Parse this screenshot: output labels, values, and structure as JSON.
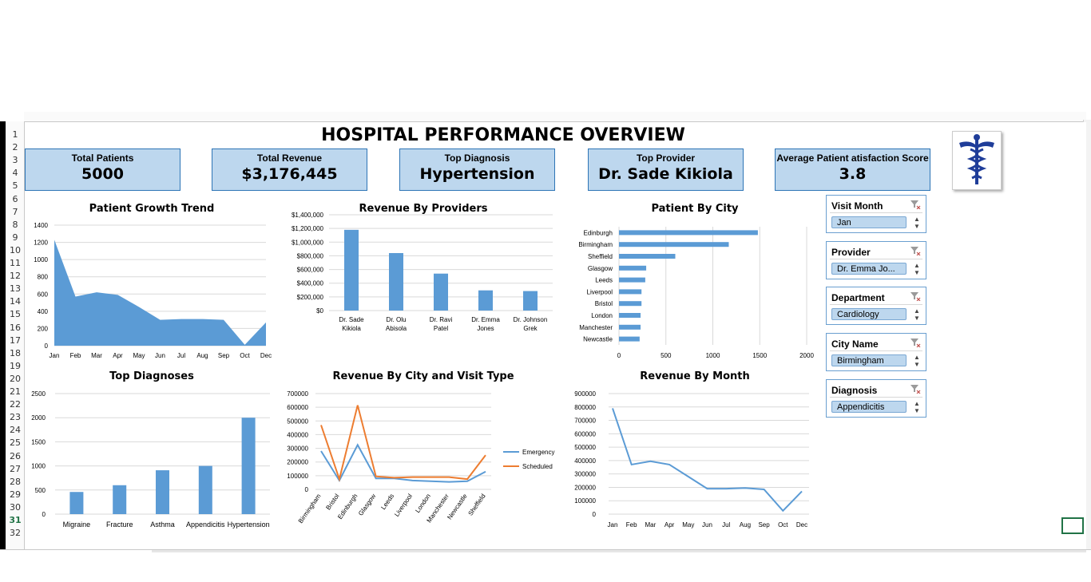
{
  "dashboard_title": "HOSPITAL PERFORMANCE OVERVIEW",
  "rows": [
    "1",
    "2",
    "3",
    "4",
    "5",
    "6",
    "7",
    "8",
    "9",
    "10",
    "11",
    "12",
    "13",
    "14",
    "15",
    "16",
    "17",
    "18",
    "19",
    "20",
    "21",
    "22",
    "23",
    "24",
    "25",
    "26",
    "27",
    "28",
    "29",
    "30",
    "31",
    "32"
  ],
  "kpis": [
    {
      "label": "Total Patients",
      "value": "5000"
    },
    {
      "label": "Total Revenue",
      "value": "$3,176,445"
    },
    {
      "label": "Top Diagnosis",
      "value": "Hypertension"
    },
    {
      "label": "Top Provider",
      "value": "Dr. Sade Kikiola"
    },
    {
      "label": "Average Patient atisfaction Score",
      "value": "3.8"
    }
  ],
  "slicers": [
    {
      "title": "Visit Month",
      "selected": "Jan"
    },
    {
      "title": "Provider",
      "selected": "Dr. Emma Jo..."
    },
    {
      "title": "Department",
      "selected": "Cardiology"
    },
    {
      "title": "City Name",
      "selected": "Birmingham"
    },
    {
      "title": "Diagnosis",
      "selected": "Appendicitis"
    }
  ],
  "colors": {
    "accent": "#5b9bd5",
    "orange": "#ed7d31",
    "kpi_bg": "#bdd7ee",
    "grid": "#d9d9d9"
  },
  "chart_data": [
    {
      "type": "area",
      "title": "Patient Growth Trend",
      "categories": [
        "Jan",
        "Feb",
        "Mar",
        "Apr",
        "May",
        "Jun",
        "Jul",
        "Aug",
        "Sep",
        "Oct",
        "Dec"
      ],
      "values": [
        1230,
        570,
        620,
        590,
        450,
        300,
        310,
        310,
        300,
        10,
        270
      ],
      "ylim": [
        0,
        1400
      ],
      "yticks": [
        "0",
        "200",
        "400",
        "600",
        "800",
        "1000",
        "1200",
        "1400"
      ]
    },
    {
      "type": "bar",
      "title": "Revenue By Providers",
      "categories": [
        "Dr. Sade Kikiola",
        "Dr. Olu Abisola",
        "Dr. Ravi Patel",
        "Dr. Emma Jones",
        "Dr. Johnson Grek"
      ],
      "values": [
        1180000,
        840000,
        540000,
        295000,
        285000
      ],
      "ylim": [
        0,
        1400000
      ],
      "yticks": [
        "$0",
        "$200,000",
        "$400,000",
        "$600,000",
        "$800,000",
        "$1,000,000",
        "$1,200,000",
        "$1,400,000"
      ]
    },
    {
      "type": "bar",
      "orientation": "horizontal",
      "title": "Patient By City",
      "categories": [
        "Edinburgh",
        "Birmingham",
        "Sheffield",
        "Glasgow",
        "Leeds",
        "Liverpool",
        "Bristol",
        "London",
        "Manchester",
        "Newcastle"
      ],
      "values": [
        1480,
        1170,
        600,
        290,
        280,
        240,
        240,
        230,
        230,
        220
      ],
      "xlim": [
        0,
        2000
      ],
      "xticks": [
        "0",
        "500",
        "1000",
        "1500",
        "2000"
      ]
    },
    {
      "type": "bar",
      "title": "Top Diagnoses",
      "categories": [
        "Migraine",
        "Fracture",
        "Asthma",
        "Appendicitis",
        "Hypertension"
      ],
      "values": [
        460,
        600,
        910,
        1000,
        2000
      ],
      "ylim": [
        0,
        2500
      ],
      "yticks": [
        "0",
        "500",
        "1000",
        "1500",
        "2000",
        "2500"
      ]
    },
    {
      "type": "line",
      "title": "Revenue By City and Visit Type",
      "categories": [
        "Birmingham",
        "Bristol",
        "Edinburgh",
        "Glasgow",
        "Leeds",
        "Liverpool",
        "London",
        "Manchester",
        "Newcastle",
        "Sheffield"
      ],
      "series": [
        {
          "name": "Emergency",
          "values": [
            280000,
            65000,
            325000,
            80000,
            80000,
            65000,
            60000,
            55000,
            60000,
            130000
          ]
        },
        {
          "name": "Scheduled",
          "values": [
            470000,
            75000,
            615000,
            95000,
            85000,
            90000,
            90000,
            90000,
            75000,
            250000
          ]
        }
      ],
      "ylim": [
        0,
        700000
      ],
      "yticks": [
        "0",
        "100000",
        "200000",
        "300000",
        "400000",
        "500000",
        "600000",
        "700000"
      ],
      "legend": "right"
    },
    {
      "type": "line",
      "title": "Revenue By Month",
      "categories": [
        "Jan",
        "Feb",
        "Mar",
        "Apr",
        "May",
        "Jun",
        "Jul",
        "Aug",
        "Sep",
        "Oct",
        "Dec"
      ],
      "values": [
        790000,
        370000,
        395000,
        370000,
        280000,
        190000,
        190000,
        195000,
        185000,
        25000,
        170000
      ],
      "ylim": [
        0,
        900000
      ],
      "yticks": [
        "0",
        "100000",
        "200000",
        "300000",
        "400000",
        "500000",
        "600000",
        "700000",
        "800000",
        "900000"
      ]
    }
  ]
}
